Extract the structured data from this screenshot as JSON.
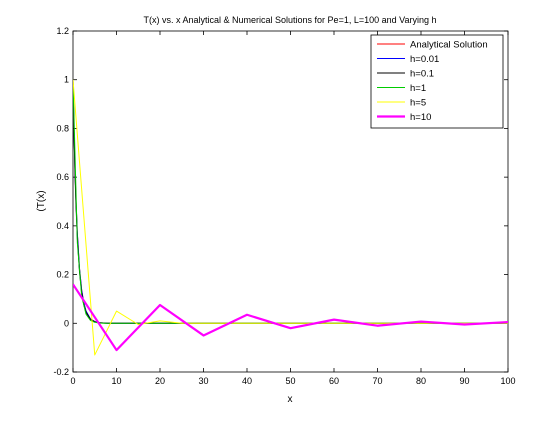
{
  "chart_data": {
    "type": "line",
    "title": "T(x) vs. x Analytical & Numerical Solutions for Pe=1, L=100 and Varying h",
    "xlabel": "x",
    "ylabel": "(T(x)",
    "xlim": [
      0,
      100
    ],
    "ylim": [
      -0.2,
      1.2
    ],
    "xticks": [
      "0",
      "10",
      "20",
      "30",
      "40",
      "50",
      "60",
      "70",
      "80",
      "90",
      "100"
    ],
    "yticks": [
      "-0.2",
      "0",
      "0.2",
      "0.4",
      "0.6",
      "0.8",
      "1",
      "1.2"
    ],
    "grid": false,
    "legend_position": "top-right",
    "series": [
      {
        "name": "Analytical Solution",
        "color": "#ff0000",
        "width": "thin",
        "x": [
          0,
          0.1,
          0.2,
          0.3,
          0.5,
          0.7,
          1,
          1.5,
          2,
          2.5,
          3,
          4,
          5,
          6,
          8,
          10,
          100
        ],
        "y": [
          1.0,
          0.905,
          0.819,
          0.741,
          0.607,
          0.497,
          0.368,
          0.223,
          0.135,
          0.082,
          0.05,
          0.018,
          0.007,
          0.002,
          0.0003,
          0.0,
          0.0
        ]
      },
      {
        "name": "h=0.01",
        "color": "#0000ff",
        "width": "thin",
        "x": [
          0,
          0.1,
          0.2,
          0.3,
          0.5,
          0.7,
          1,
          1.5,
          2,
          2.5,
          3,
          4,
          5,
          6,
          8,
          10,
          100
        ],
        "y": [
          1.0,
          0.905,
          0.819,
          0.741,
          0.607,
          0.497,
          0.368,
          0.223,
          0.135,
          0.082,
          0.05,
          0.018,
          0.007,
          0.002,
          0.0003,
          0.0,
          0.0
        ]
      },
      {
        "name": "h=0.1",
        "color": "#000000",
        "width": "thin",
        "x": [
          0,
          0.1,
          0.3,
          0.5,
          0.7,
          1,
          1.5,
          2,
          2.5,
          3,
          4,
          5,
          6,
          8,
          10,
          100
        ],
        "y": [
          1.0,
          0.9,
          0.73,
          0.59,
          0.48,
          0.35,
          0.21,
          0.125,
          0.075,
          0.045,
          0.016,
          0.006,
          0.002,
          0.0,
          0.0,
          0.0
        ]
      },
      {
        "name": "h=1",
        "color": "#00cc00",
        "width": "thin",
        "x": [
          0,
          1,
          2,
          3,
          4,
          5,
          6,
          7,
          8,
          10,
          100
        ],
        "y": [
          1.0,
          0.33,
          0.11,
          0.037,
          0.012,
          0.004,
          0.001,
          0.0,
          0.0,
          0.0,
          0.0
        ]
      },
      {
        "name": "h=5",
        "color": "#ffff00",
        "width": "thin",
        "x": [
          0,
          5,
          10,
          15,
          20,
          25,
          30,
          35,
          40,
          100
        ],
        "y": [
          1.0,
          -0.13,
          0.05,
          -0.005,
          0.01,
          0.0,
          0.0,
          0.0,
          0.0,
          0.0
        ]
      },
      {
        "name": "h=10",
        "color": "#ff00ff",
        "width": "thick",
        "x": [
          0,
          10,
          20,
          30,
          40,
          50,
          60,
          70,
          80,
          90,
          100
        ],
        "y": [
          0.16,
          -0.11,
          0.075,
          -0.05,
          0.035,
          -0.02,
          0.015,
          -0.01,
          0.007,
          -0.005,
          0.005
        ]
      }
    ]
  }
}
